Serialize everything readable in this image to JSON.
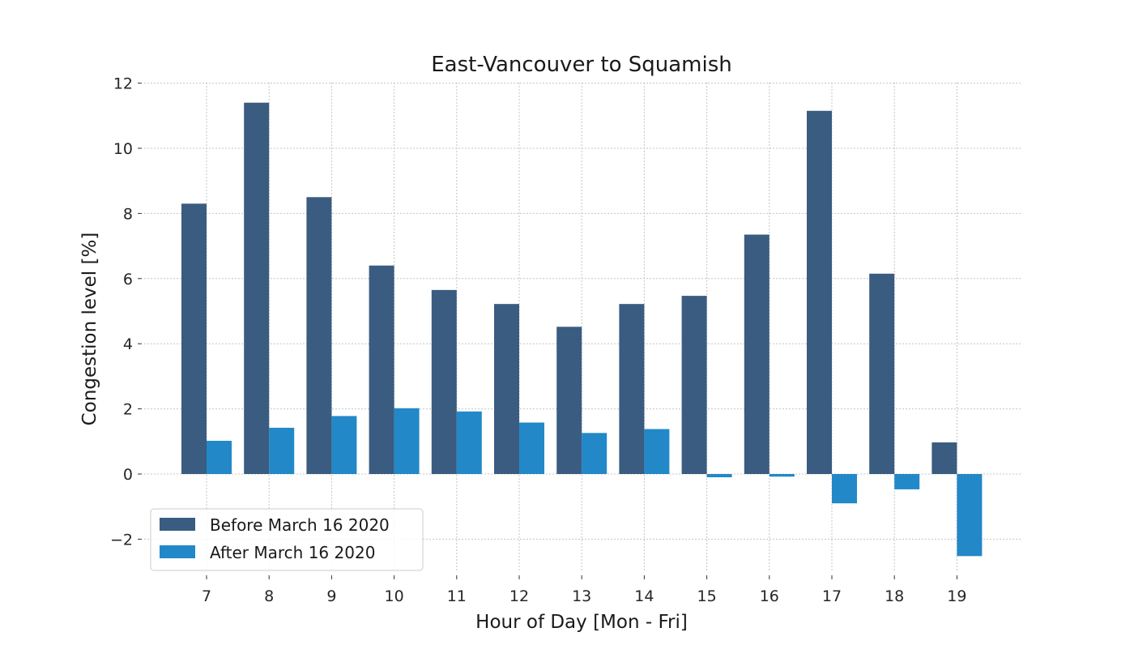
{
  "chart_data": {
    "type": "bar",
    "title": "East-Vancouver to Squamish",
    "xlabel": "Hour of Day [Mon - Fri]",
    "ylabel": "Congestion level [%]",
    "categories": [
      "7",
      "8",
      "9",
      "10",
      "11",
      "12",
      "13",
      "14",
      "15",
      "16",
      "17",
      "18",
      "19"
    ],
    "series": [
      {
        "name": "Before March 16 2020",
        "color": "#3a5c80",
        "values": [
          8.3,
          11.4,
          8.5,
          6.4,
          5.65,
          5.22,
          4.52,
          5.22,
          5.47,
          7.35,
          11.15,
          6.15,
          0.97
        ]
      },
      {
        "name": "After March 16 2020",
        "color": "#2288c8",
        "values": [
          1.02,
          1.42,
          1.78,
          2.02,
          1.92,
          1.58,
          1.26,
          1.38,
          -0.1,
          -0.08,
          -0.9,
          -0.47,
          -2.52
        ]
      }
    ],
    "ylim": [
      -3.1,
      12
    ],
    "yticks": [
      -2,
      0,
      2,
      4,
      6,
      8,
      10,
      12
    ],
    "ytick_labels": [
      "−2",
      "0",
      "2",
      "4",
      "6",
      "8",
      "10",
      "12"
    ],
    "grid": true,
    "legend": "lower-left"
  }
}
